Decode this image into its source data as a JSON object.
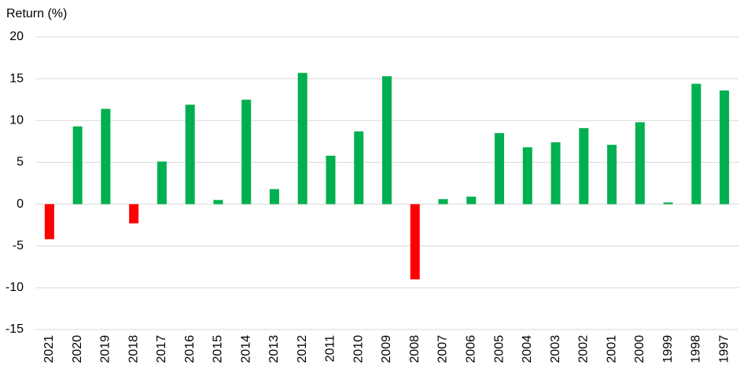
{
  "chart_data": {
    "type": "bar",
    "title": "Return (%)",
    "categories": [
      "2021",
      "2020",
      "2019",
      "2018",
      "2017",
      "2016",
      "2015",
      "2014",
      "2013",
      "2012",
      "2011",
      "2010",
      "2009",
      "2008",
      "2007",
      "2006",
      "2005",
      "2004",
      "2003",
      "2002",
      "2001",
      "2000",
      "1999",
      "1998",
      "1997"
    ],
    "values": [
      -4.2,
      9.3,
      11.4,
      -2.3,
      5.1,
      11.9,
      0.5,
      12.5,
      1.8,
      15.7,
      5.8,
      8.7,
      15.3,
      -9.0,
      0.6,
      0.9,
      8.5,
      6.8,
      7.4,
      9.1,
      7.1,
      9.8,
      0.2,
      14.4,
      13.6
    ],
    "color": "#00b050",
    "negative_color": "#ff0000",
    "ylim": [
      -15,
      20
    ],
    "yticks": [
      -15,
      -10,
      -5,
      0,
      5,
      10,
      15,
      20
    ],
    "grid": true
  }
}
